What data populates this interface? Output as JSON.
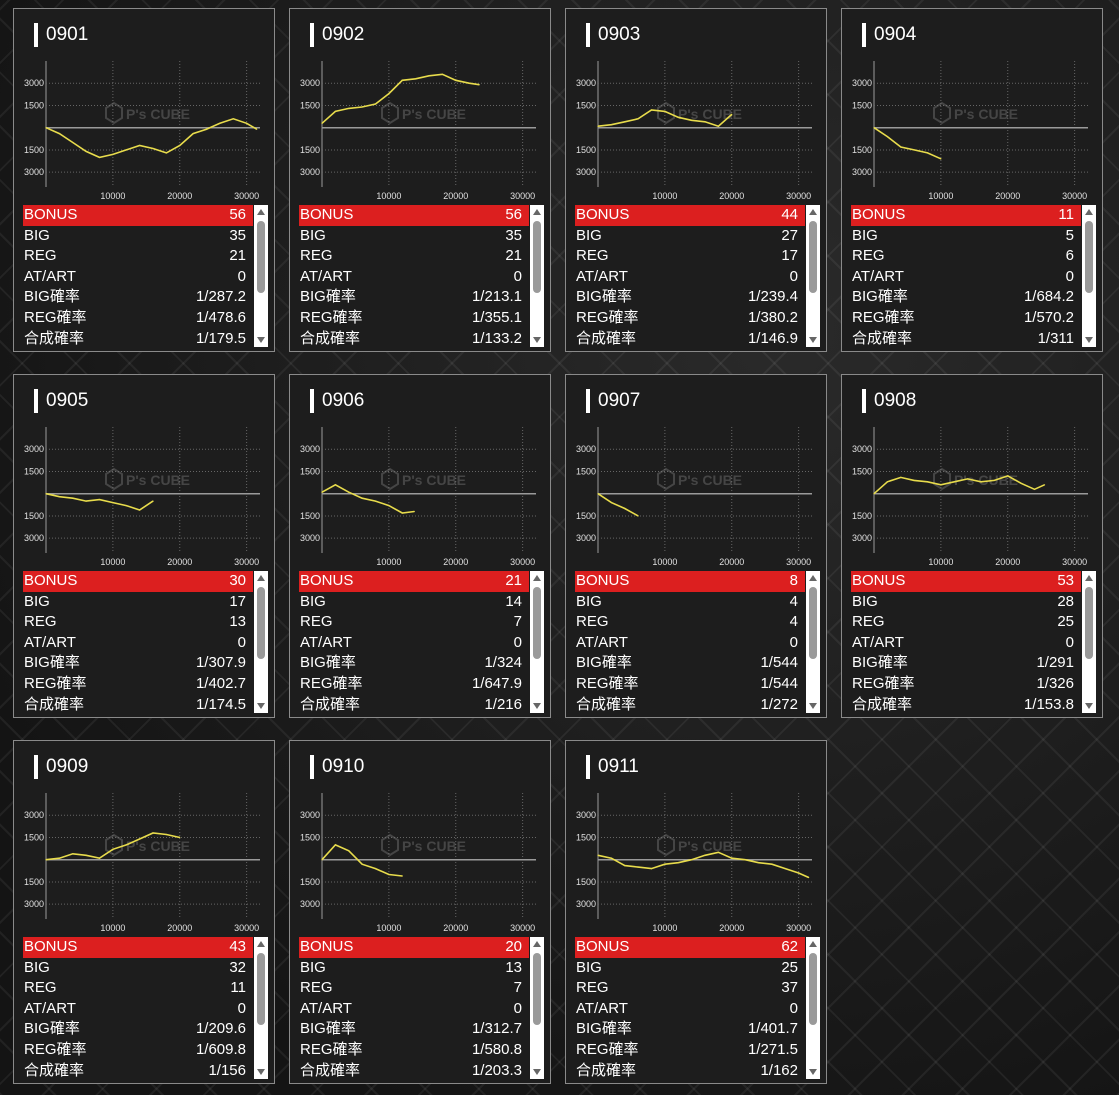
{
  "labels": {
    "bonus": "BONUS",
    "big": "BIG",
    "reg": "REG",
    "atart": "AT/ART",
    "big_rate": "BIG確率",
    "reg_rate": "REG確率",
    "total_rate": "合成確率"
  },
  "watermark": "P's CUBE",
  "colors": {
    "line": "#e8dc4c",
    "bonus_bg": "#dc1f1f",
    "card_bg": "#1d1d1d"
  },
  "chart_axes": {
    "y_ticks": [
      "3000",
      "1500",
      "-1500",
      "-3000"
    ],
    "x_ticks": [
      "10000",
      "20000",
      "30000"
    ],
    "xlim": [
      0,
      32000
    ],
    "ylim": [
      -4000,
      4500
    ]
  },
  "machines": [
    {
      "id": "0901",
      "bonus": "56",
      "big": "35",
      "reg": "21",
      "atart": "0",
      "big_rate": "1/287.2",
      "reg_rate": "1/478.6",
      "total_rate": "1/179.5",
      "chart_data": {
        "type": "line",
        "x": [
          0,
          2000,
          4000,
          6000,
          8000,
          10000,
          12000,
          14000,
          16000,
          18000,
          20000,
          22000,
          24000,
          26000,
          28000,
          30000,
          31500
        ],
        "y": [
          0,
          -400,
          -1000,
          -1600,
          -2000,
          -1800,
          -1500,
          -1200,
          -1400,
          -1700,
          -1200,
          -400,
          -100,
          300,
          600,
          300,
          -100
        ]
      }
    },
    {
      "id": "0902",
      "bonus": "56",
      "big": "35",
      "reg": "21",
      "atart": "0",
      "big_rate": "1/213.1",
      "reg_rate": "1/355.1",
      "total_rate": "1/133.2",
      "chart_data": {
        "type": "line",
        "x": [
          0,
          2000,
          4000,
          6000,
          8000,
          10000,
          12000,
          14000,
          16000,
          18000,
          20000,
          22000,
          23500
        ],
        "y": [
          300,
          1100,
          1300,
          1400,
          1600,
          2300,
          3200,
          3300,
          3500,
          3600,
          3200,
          3000,
          2900
        ]
      }
    },
    {
      "id": "0903",
      "bonus": "44",
      "big": "27",
      "reg": "17",
      "atart": "0",
      "big_rate": "1/239.4",
      "reg_rate": "1/380.2",
      "total_rate": "1/146.9",
      "chart_data": {
        "type": "line",
        "x": [
          0,
          2000,
          4000,
          6000,
          8000,
          10000,
          12000,
          14000,
          16000,
          18000,
          20000
        ],
        "y": [
          100,
          200,
          400,
          600,
          1200,
          1100,
          700,
          500,
          400,
          100,
          900
        ]
      }
    },
    {
      "id": "0904",
      "bonus": "11",
      "big": "5",
      "reg": "6",
      "atart": "0",
      "big_rate": "1/684.2",
      "reg_rate": "1/570.2",
      "total_rate": "1/311",
      "chart_data": {
        "type": "line",
        "x": [
          0,
          2000,
          4000,
          6000,
          8000,
          10000
        ],
        "y": [
          0,
          -600,
          -1300,
          -1500,
          -1700,
          -2100
        ]
      }
    },
    {
      "id": "0905",
      "bonus": "30",
      "big": "17",
      "reg": "13",
      "atart": "0",
      "big_rate": "1/307.9",
      "reg_rate": "1/402.7",
      "total_rate": "1/174.5",
      "chart_data": {
        "type": "line",
        "x": [
          0,
          2000,
          4000,
          6000,
          8000,
          10000,
          12000,
          14000,
          16000
        ],
        "y": [
          0,
          -200,
          -300,
          -500,
          -400,
          -600,
          -800,
          -1100,
          -500
        ]
      }
    },
    {
      "id": "0906",
      "bonus": "21",
      "big": "14",
      "reg": "7",
      "atart": "0",
      "big_rate": "1/324",
      "reg_rate": "1/647.9",
      "total_rate": "1/216",
      "chart_data": {
        "type": "line",
        "x": [
          0,
          2000,
          4000,
          6000,
          8000,
          10000,
          12000,
          13800
        ],
        "y": [
          100,
          600,
          100,
          -300,
          -500,
          -800,
          -1300,
          -1200
        ]
      }
    },
    {
      "id": "0907",
      "bonus": "8",
      "big": "4",
      "reg": "4",
      "atart": "0",
      "big_rate": "1/544",
      "reg_rate": "1/544",
      "total_rate": "1/272",
      "chart_data": {
        "type": "line",
        "x": [
          0,
          2000,
          4000,
          6000
        ],
        "y": [
          0,
          -600,
          -1000,
          -1500
        ]
      }
    },
    {
      "id": "0908",
      "bonus": "53",
      "big": "28",
      "reg": "25",
      "atart": "0",
      "big_rate": "1/291",
      "reg_rate": "1/326",
      "total_rate": "1/153.8",
      "chart_data": {
        "type": "line",
        "x": [
          0,
          2000,
          4000,
          6000,
          8000,
          10000,
          12000,
          14000,
          16000,
          18000,
          20000,
          22000,
          24000,
          25500
        ],
        "y": [
          0,
          800,
          1100,
          900,
          800,
          600,
          800,
          1000,
          800,
          900,
          1200,
          700,
          300,
          600
        ]
      }
    },
    {
      "id": "0909",
      "bonus": "43",
      "big": "32",
      "reg": "11",
      "atart": "0",
      "big_rate": "1/209.6",
      "reg_rate": "1/609.8",
      "total_rate": "1/156",
      "chart_data": {
        "type": "line",
        "x": [
          0,
          2000,
          4000,
          6000,
          8000,
          10000,
          12000,
          14000,
          16000,
          18000,
          20000
        ],
        "y": [
          0,
          100,
          400,
          300,
          100,
          700,
          1000,
          1400,
          1800,
          1700,
          1500
        ]
      }
    },
    {
      "id": "0910",
      "bonus": "20",
      "big": "13",
      "reg": "7",
      "atart": "0",
      "big_rate": "1/312.7",
      "reg_rate": "1/580.8",
      "total_rate": "1/203.3",
      "chart_data": {
        "type": "line",
        "x": [
          0,
          2000,
          4000,
          6000,
          8000,
          10000,
          12000
        ],
        "y": [
          0,
          1000,
          600,
          -300,
          -600,
          -1000,
          -1100
        ]
      }
    },
    {
      "id": "0911",
      "bonus": "62",
      "big": "25",
      "reg": "37",
      "atart": "0",
      "big_rate": "1/401.7",
      "reg_rate": "1/271.5",
      "total_rate": "1/162",
      "chart_data": {
        "type": "line",
        "x": [
          0,
          2000,
          4000,
          6000,
          8000,
          10000,
          12000,
          14000,
          16000,
          18000,
          20000,
          22000,
          24000,
          26000,
          28000,
          30000,
          31500
        ],
        "y": [
          300,
          100,
          -400,
          -500,
          -600,
          -300,
          -200,
          0,
          300,
          500,
          100,
          0,
          -200,
          -300,
          -600,
          -900,
          -1200
        ]
      }
    }
  ]
}
